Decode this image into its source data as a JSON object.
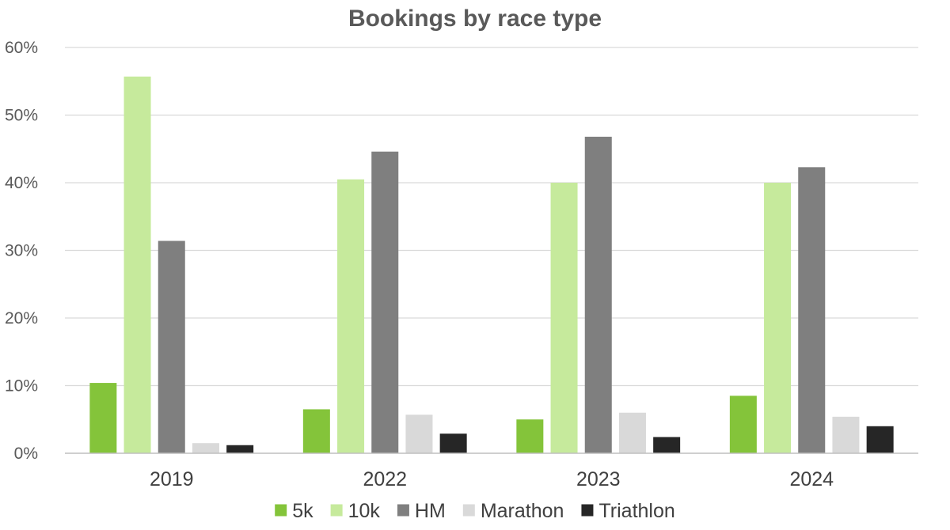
{
  "chart_data": {
    "type": "bar",
    "title": "Bookings by race type",
    "xlabel": "",
    "ylabel": "",
    "categories": [
      "2019",
      "2022",
      "2023",
      "2024"
    ],
    "series": [
      {
        "name": "5k",
        "color": "#84c43a",
        "values": [
          10.4,
          6.5,
          5.0,
          8.5
        ]
      },
      {
        "name": "10k",
        "color": "#c6ea9c",
        "values": [
          55.7,
          40.5,
          40.0,
          40.0
        ]
      },
      {
        "name": "HM",
        "color": "#7f7f7f",
        "values": [
          31.4,
          44.6,
          46.8,
          42.3
        ]
      },
      {
        "name": "Marathon",
        "color": "#d9d9d9",
        "values": [
          1.5,
          5.7,
          6.0,
          5.4
        ]
      },
      {
        "name": "Triathlon",
        "color": "#262626",
        "values": [
          1.2,
          2.9,
          2.4,
          4.0
        ]
      }
    ],
    "ylim": [
      0,
      60
    ],
    "yticks": [
      0,
      10,
      20,
      30,
      40,
      50,
      60
    ],
    "ytick_labels": [
      "0%",
      "10%",
      "20%",
      "30%",
      "40%",
      "50%",
      "60%"
    ],
    "grid": true,
    "legend_position": "bottom"
  }
}
